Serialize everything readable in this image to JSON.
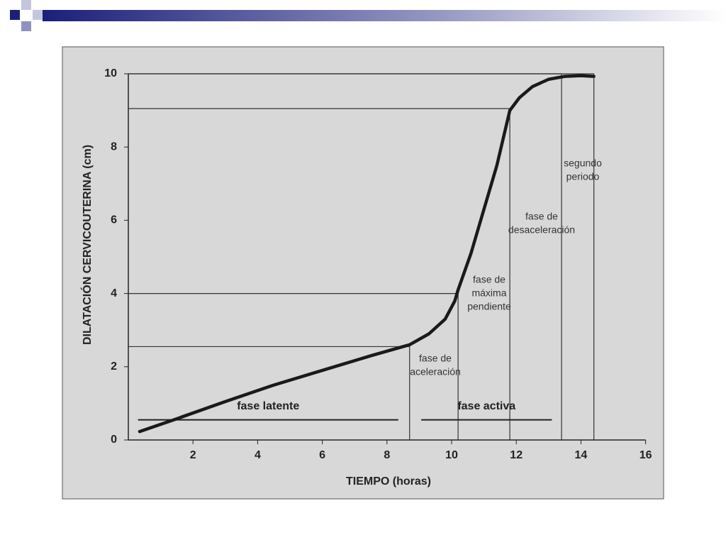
{
  "chart_data": {
    "type": "line",
    "x_label": "TIEMPO (horas)",
    "y_label": "DILATACIÓN CERVICOUTERINA (cm)",
    "xlim": [
      0,
      16
    ],
    "ylim": [
      0,
      10
    ],
    "xticks": [
      2,
      4,
      6,
      8,
      10,
      12,
      14,
      16
    ],
    "yticks": [
      0,
      2,
      4,
      6,
      8,
      10
    ],
    "series": [
      {
        "color": "#1a1a1a",
        "x": [
          0.35,
          1.5,
          3,
          4.5,
          6,
          7.5,
          8.7,
          9.3,
          9.8,
          10.1,
          10.2,
          10.6,
          11,
          11.4,
          11.8,
          12.1,
          12.5,
          13,
          13.5,
          14,
          14.4
        ],
        "values": [
          0.23,
          0.58,
          1.05,
          1.5,
          1.9,
          2.3,
          2.6,
          2.9,
          3.3,
          3.8,
          4.1,
          5.1,
          6.3,
          7.5,
          9.0,
          9.35,
          9.65,
          9.85,
          9.93,
          9.95,
          9.93
        ]
      }
    ],
    "reference_lines": [
      {
        "x": 8.7,
        "y": 2.55
      },
      {
        "x": 10.2,
        "y": 4
      },
      {
        "x": 11.8,
        "y": 9.05
      },
      {
        "x": 13.4,
        "y": 10
      },
      {
        "x": 14.4,
        "y": 10
      }
    ],
    "phases": [
      {
        "label": "fase latente",
        "start": 0.3,
        "end": 8.35,
        "y": 0.55
      },
      {
        "label": "fase activa",
        "start": 9.06,
        "end": 13.1,
        "y": 0.55
      }
    ],
    "annotations": [
      {
        "lines": [
          "fase de",
          "aceleración"
        ]
      },
      {
        "lines": [
          "fase de",
          "máxima",
          "pendiente"
        ]
      },
      {
        "lines": [
          "fase de",
          "desaceleración"
        ]
      },
      {
        "lines": [
          "segundo",
          "periodo"
        ]
      }
    ]
  }
}
